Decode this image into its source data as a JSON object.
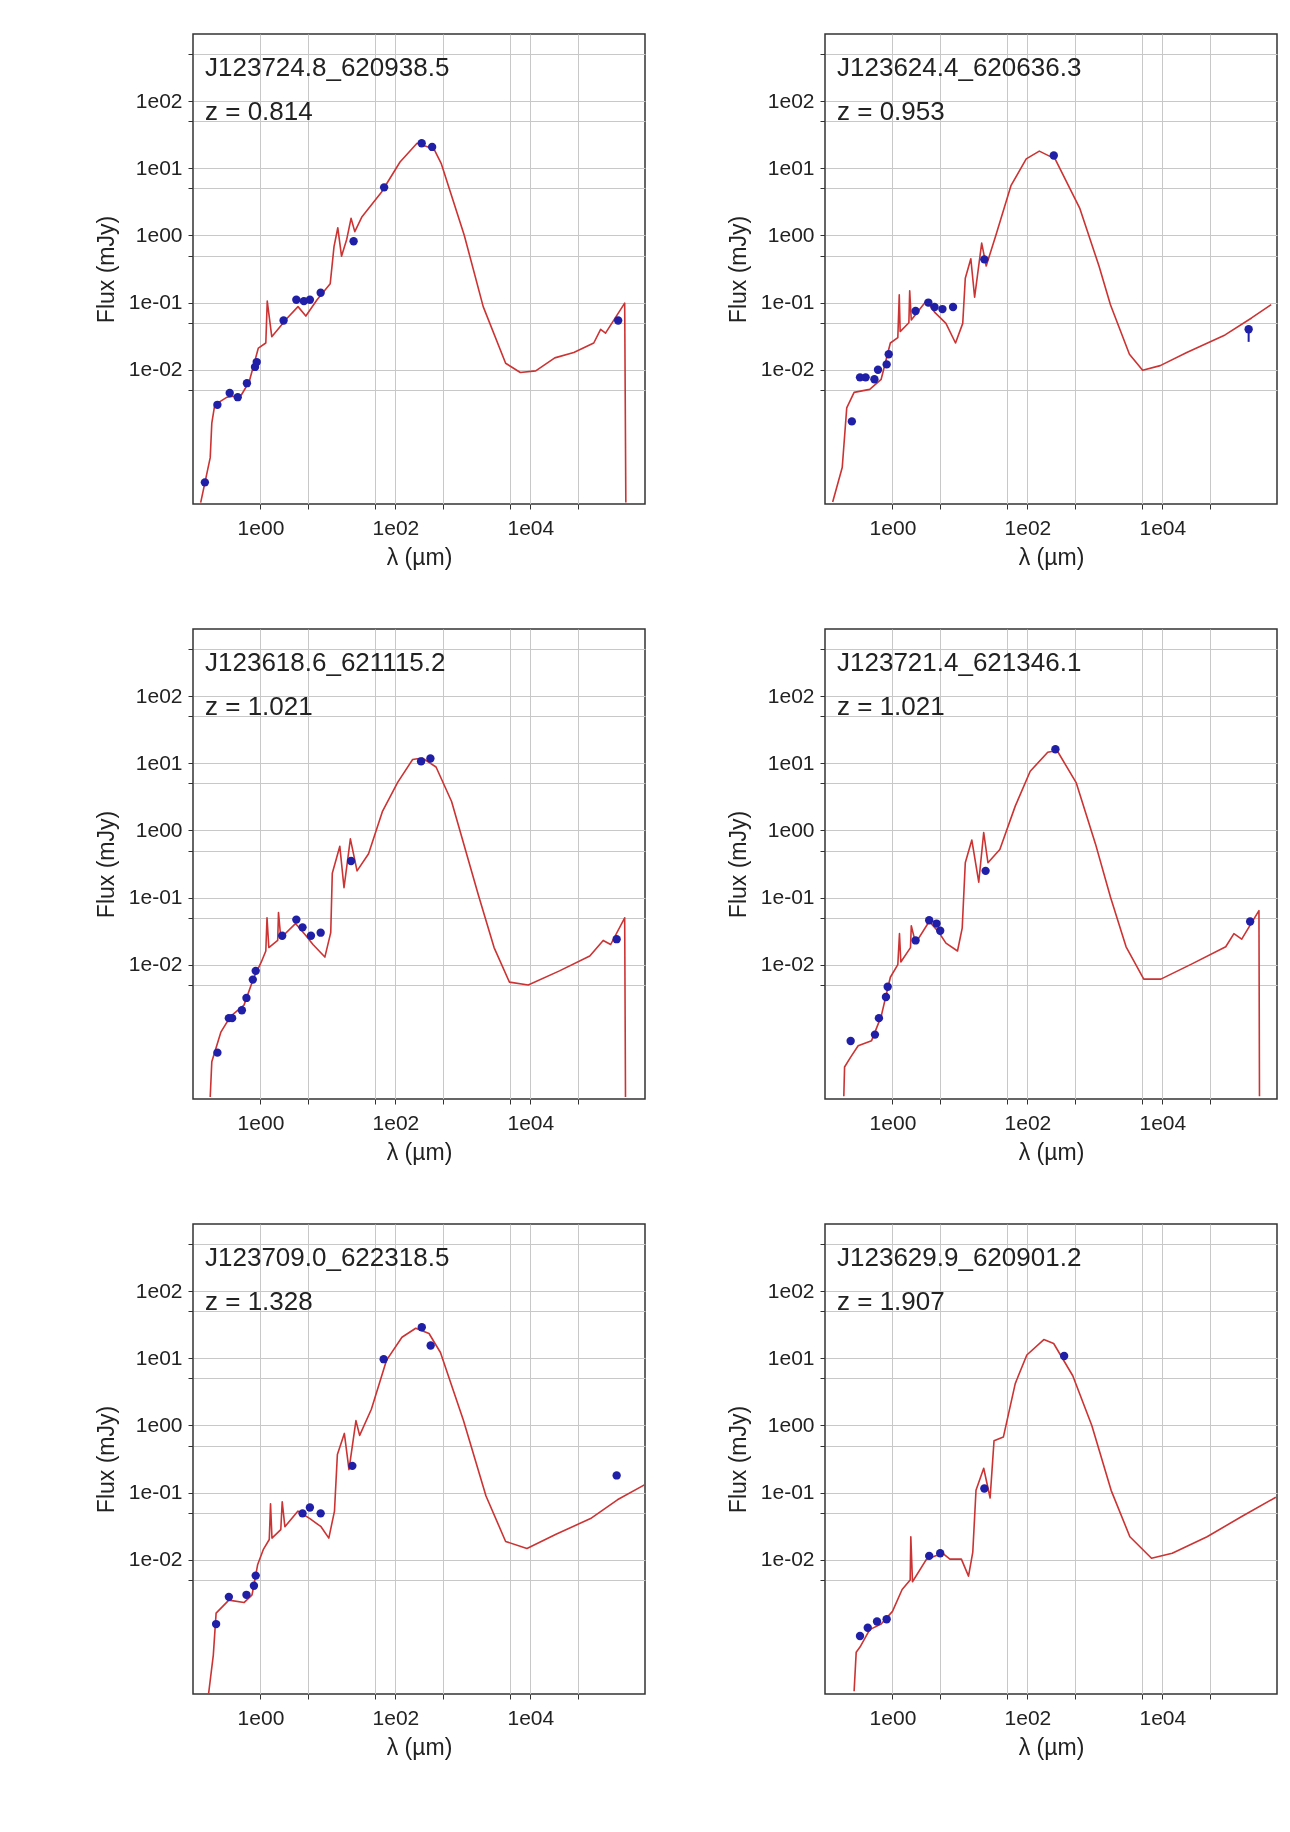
{
  "chart_data": [
    {
      "type": "line",
      "annotations": [
        "J123724.8_620938.5",
        "z = 0.814"
      ],
      "xlabel": "λ (µm)",
      "ylabel": "Flux (mJy)",
      "log": "xy",
      "grid": true,
      "xlim": [
        0.1,
        500000
      ],
      "ylim": [
        0.0001,
        1000
      ],
      "xticks": [
        {
          "value": 1,
          "label": "1e00"
        },
        {
          "value": 5,
          "label": null
        },
        {
          "value": 50,
          "label": null
        },
        {
          "value": 100,
          "label": "1e02"
        },
        {
          "value": 500,
          "label": null
        },
        {
          "value": 5000,
          "label": null
        },
        {
          "value": 10000,
          "label": "1e04"
        },
        {
          "value": 50000,
          "label": null
        }
      ],
      "yticks": [
        {
          "value": 500,
          "label": null
        },
        {
          "value": 100,
          "label": "1e02"
        },
        {
          "value": 50,
          "label": null
        },
        {
          "value": 10,
          "label": "1e01"
        },
        {
          "value": 5,
          "label": null
        },
        {
          "value": 1,
          "label": "1e00"
        },
        {
          "value": 0.5,
          "label": null
        },
        {
          "value": 0.1,
          "label": "1e-01"
        },
        {
          "value": 0.05,
          "label": null
        },
        {
          "value": 0.01,
          "label": "1e-02"
        },
        {
          "value": 0.005,
          "label": null
        }
      ],
      "series": [
        {
          "type": "line",
          "color": "#cc3333",
          "x": [
            0.13,
            0.18,
            0.19,
            0.21,
            0.32,
            0.52,
            0.68,
            0.93,
            1.2,
            1.26,
            1.47,
            2.5,
            3.6,
            4.7,
            6.9,
            10.8,
            12.3,
            14,
            15.9,
            19,
            22,
            25,
            32,
            62,
            117,
            209,
            372,
            480,
            1050,
            2000,
            4300,
            7100,
            12000,
            23000,
            44000,
            87000,
            110000,
            130000,
            250000,
            260000
          ],
          "values": [
            0.000105,
            0.00049,
            0.0016,
            0.003,
            0.0039,
            0.0042,
            0.0066,
            0.021,
            0.025,
            0.105,
            0.031,
            0.059,
            0.087,
            0.063,
            0.11,
            0.19,
            0.68,
            1.3,
            0.49,
            0.88,
            1.8,
            1.14,
            1.9,
            4.4,
            12.4,
            23.6,
            19.4,
            11.6,
            1.0,
            0.087,
            0.0125,
            0.0091,
            0.0096,
            0.015,
            0.018,
            0.025,
            0.04,
            0.035,
            0.098,
            0.000105
          ]
        },
        {
          "type": "scatter",
          "color": "#1f1fa8",
          "marker": "circle",
          "x": [
            0.15,
            0.23,
            0.35,
            0.46,
            0.63,
            0.83,
            0.88,
            2.2,
            3.4,
            4.4,
            5.4,
            7.8,
            24,
            68,
            245,
            350,
            200000
          ],
          "values": [
            0.00021,
            0.003,
            0.0045,
            0.0039,
            0.0063,
            0.011,
            0.013,
            0.054,
            0.11,
            0.105,
            0.11,
            0.14,
            0.82,
            5.2,
            23.6,
            20.8,
            0.054
          ]
        }
      ]
    },
    {
      "type": "line",
      "annotations": [
        "J123624.4_620636.3",
        "z = 0.953"
      ],
      "xlabel": "λ (µm)",
      "ylabel": "Flux (mJy)",
      "log": "xy",
      "grid": true,
      "xlim": [
        0.1,
        500000
      ],
      "ylim": [
        0.0001,
        1000
      ],
      "xticks": [
        {
          "value": 1,
          "label": "1e00"
        },
        {
          "value": 5,
          "label": null
        },
        {
          "value": 50,
          "label": null
        },
        {
          "value": 100,
          "label": "1e02"
        },
        {
          "value": 500,
          "label": null
        },
        {
          "value": 5000,
          "label": null
        },
        {
          "value": 10000,
          "label": "1e04"
        },
        {
          "value": 50000,
          "label": null
        }
      ],
      "yticks": [
        {
          "value": 500,
          "label": null
        },
        {
          "value": 100,
          "label": "1e02"
        },
        {
          "value": 50,
          "label": null
        },
        {
          "value": 10,
          "label": "1e01"
        },
        {
          "value": 5,
          "label": null
        },
        {
          "value": 1,
          "label": "1e00"
        },
        {
          "value": 0.5,
          "label": null
        },
        {
          "value": 0.1,
          "label": "1e-01"
        },
        {
          "value": 0.05,
          "label": null
        },
        {
          "value": 0.01,
          "label": "1e-02"
        },
        {
          "value": 0.005,
          "label": null
        }
      ],
      "series": [
        {
          "type": "line",
          "color": "#cc3333",
          "x": [
            0.13,
            0.18,
            0.21,
            0.27,
            0.46,
            0.68,
            0.93,
            1.2,
            1.26,
            1.3,
            1.75,
            1.8,
            1.9,
            3.2,
            4.2,
            6.2,
            8.6,
            11,
            12,
            14.5,
            16.5,
            21,
            24.5,
            34,
            57,
            96,
            150,
            257,
            600,
            1150,
            1700,
            3250,
            5100,
            9300,
            23000,
            85000,
            210000,
            410000
          ],
          "values": [
            0.000107,
            0.00035,
            0.0027,
            0.0046,
            0.0051,
            0.0072,
            0.025,
            0.03,
            0.13,
            0.037,
            0.05,
            0.15,
            0.055,
            0.107,
            0.072,
            0.049,
            0.025,
            0.049,
            0.23,
            0.45,
            0.12,
            0.77,
            0.35,
            1.0,
            5.5,
            13.8,
            18,
            13.8,
            2.5,
            0.35,
            0.093,
            0.017,
            0.0098,
            0.0115,
            0.018,
            0.033,
            0.059,
            0.093
          ]
        },
        {
          "type": "scatter",
          "color": "#1f1fa8",
          "marker": "circle",
          "x": [
            0.25,
            0.33,
            0.4,
            0.54,
            0.61,
            0.82,
            0.88,
            2.2,
            3.4,
            4.2,
            5.5,
            7.9,
            23,
            246,
            190000
          ],
          "values": [
            0.0017,
            0.0077,
            0.0077,
            0.0072,
            0.01,
            0.012,
            0.017,
            0.075,
            0.1,
            0.086,
            0.08,
            0.086,
            0.44,
            15.5,
            0.04
          ],
          "errors": [
            null,
            null,
            null,
            null,
            null,
            null,
            null,
            null,
            null,
            null,
            null,
            null,
            null,
            null,
            [
              0.026,
              0.045
            ]
          ]
        }
      ]
    },
    {
      "type": "line",
      "annotations": [
        "J123618.6_621115.2",
        "z = 1.021"
      ],
      "xlabel": "λ (µm)",
      "ylabel": "Flux (mJy)",
      "log": "xy",
      "grid": true,
      "xlim": [
        0.1,
        500000
      ],
      "ylim": [
        0.0001,
        1000
      ],
      "xticks": [
        {
          "value": 1,
          "label": "1e00"
        },
        {
          "value": 5,
          "label": null
        },
        {
          "value": 50,
          "label": null
        },
        {
          "value": 100,
          "label": "1e02"
        },
        {
          "value": 500,
          "label": null
        },
        {
          "value": 5000,
          "label": null
        },
        {
          "value": 10000,
          "label": "1e04"
        },
        {
          "value": 50000,
          "label": null
        }
      ],
      "yticks": [
        {
          "value": 500,
          "label": null
        },
        {
          "value": 100,
          "label": "1e02"
        },
        {
          "value": 50,
          "label": null
        },
        {
          "value": 10,
          "label": "1e01"
        },
        {
          "value": 5,
          "label": null
        },
        {
          "value": 1,
          "label": "1e00"
        },
        {
          "value": 0.5,
          "label": null
        },
        {
          "value": 0.1,
          "label": "1e-01"
        },
        {
          "value": 0.05,
          "label": null
        },
        {
          "value": 0.01,
          "label": "1e-02"
        },
        {
          "value": 0.005,
          "label": null
        }
      ],
      "series": [
        {
          "type": "line",
          "color": "#cc3333",
          "x": [
            0.18,
            0.19,
            0.26,
            0.36,
            0.57,
            0.79,
            1.03,
            1.2,
            1.25,
            1.33,
            1.8,
            1.85,
            2.0,
            3.3,
            4.6,
            6.0,
            9.0,
            11,
            11.6,
            15,
            17.3,
            21.5,
            27,
            40,
            64,
            108,
            180,
            250,
            400,
            680,
            1700,
            2900,
            4900,
            9300,
            27000,
            76000,
            120000,
            155000,
            250000,
            257000
          ],
          "values": [
            0.000107,
            0.00036,
            0.001,
            0.0017,
            0.0025,
            0.0063,
            0.011,
            0.016,
            0.05,
            0.018,
            0.023,
            0.06,
            0.025,
            0.041,
            0.028,
            0.02,
            0.013,
            0.03,
            0.23,
            0.58,
            0.14,
            0.75,
            0.25,
            0.45,
            1.9,
            5.2,
            11.4,
            12,
            8.8,
            2.7,
            0.108,
            0.018,
            0.0055,
            0.005,
            0.0081,
            0.0135,
            0.023,
            0.02,
            0.05,
            0.000107
          ]
        },
        {
          "type": "scatter",
          "color": "#1f1fa8",
          "marker": "circle",
          "x": [
            0.23,
            0.34,
            0.38,
            0.53,
            0.62,
            0.77,
            0.85,
            2.1,
            3.4,
            4.2,
            5.6,
            7.8,
            22,
            240,
            330,
            190000
          ],
          "values": [
            0.00049,
            0.0016,
            0.0016,
            0.0021,
            0.0032,
            0.006,
            0.0081,
            0.027,
            0.047,
            0.036,
            0.027,
            0.03,
            0.35,
            10.7,
            11.8,
            0.024
          ]
        }
      ]
    },
    {
      "type": "line",
      "annotations": [
        "J123721.4_621346.1",
        "z = 1.021"
      ],
      "xlabel": "λ (µm)",
      "ylabel": "Flux (mJy)",
      "log": "xy",
      "grid": true,
      "xlim": [
        0.1,
        500000
      ],
      "ylim": [
        0.0001,
        1000
      ],
      "xticks": [
        {
          "value": 1,
          "label": "1e00"
        },
        {
          "value": 5,
          "label": null
        },
        {
          "value": 50,
          "label": null
        },
        {
          "value": 100,
          "label": "1e02"
        },
        {
          "value": 500,
          "label": null
        },
        {
          "value": 5000,
          "label": null
        },
        {
          "value": 10000,
          "label": "1e04"
        },
        {
          "value": 50000,
          "label": null
        }
      ],
      "yticks": [
        {
          "value": 500,
          "label": null
        },
        {
          "value": 100,
          "label": "1e02"
        },
        {
          "value": 50,
          "label": null
        },
        {
          "value": 10,
          "label": "1e01"
        },
        {
          "value": 5,
          "label": null
        },
        {
          "value": 1,
          "label": "1e00"
        },
        {
          "value": 0.5,
          "label": null
        },
        {
          "value": 0.1,
          "label": "1e-01"
        },
        {
          "value": 0.05,
          "label": null
        },
        {
          "value": 0.01,
          "label": "1e-02"
        },
        {
          "value": 0.005,
          "label": null
        }
      ],
      "series": [
        {
          "type": "line",
          "color": "#cc3333",
          "x": [
            0.19,
            0.195,
            0.24,
            0.31,
            0.49,
            0.68,
            0.93,
            1.2,
            1.27,
            1.33,
            1.85,
            1.9,
            2.2,
            3.5,
            4.8,
            6.2,
            9.2,
            10.8,
            12,
            15,
            19,
            22.5,
            26,
            39,
            66,
            110,
            200,
            275,
            530,
            1020,
            1700,
            2900,
            5300,
            9500,
            27000,
            87000,
            115000,
            150000,
            270000,
            275000
          ],
          "values": [
            0.00011,
            0.0003,
            0.00042,
            0.00062,
            0.00074,
            0.0017,
            0.0065,
            0.01,
            0.029,
            0.011,
            0.018,
            0.038,
            0.021,
            0.044,
            0.031,
            0.021,
            0.016,
            0.035,
            0.33,
            0.72,
            0.17,
            0.93,
            0.33,
            0.52,
            2.3,
            7.6,
            14.6,
            15.5,
            5.1,
            0.63,
            0.102,
            0.0185,
            0.0061,
            0.0061,
            0.0102,
            0.0185,
            0.029,
            0.024,
            0.064,
            0.00011
          ]
        },
        {
          "type": "scatter",
          "color": "#1f1fa8",
          "marker": "circle",
          "x": [
            0.24,
            0.55,
            0.63,
            0.8,
            0.85,
            2.2,
            3.5,
            4.5,
            5.1,
            24,
            260,
            200000
          ],
          "values": [
            0.00073,
            0.00091,
            0.0016,
            0.0033,
            0.0047,
            0.023,
            0.046,
            0.041,
            0.032,
            0.25,
            16.2,
            0.044
          ]
        }
      ]
    },
    {
      "type": "line",
      "annotations": [
        "J123709.0_622318.5",
        "z = 1.328"
      ],
      "xlabel": "λ (µm)",
      "ylabel": "Flux (mJy)",
      "log": "xy",
      "grid": true,
      "xlim": [
        0.1,
        500000
      ],
      "ylim": [
        0.0001,
        1000
      ],
      "xticks": [
        {
          "value": 1,
          "label": "1e00"
        },
        {
          "value": 5,
          "label": null
        },
        {
          "value": 50,
          "label": null
        },
        {
          "value": 100,
          "label": "1e02"
        },
        {
          "value": 500,
          "label": null
        },
        {
          "value": 5000,
          "label": null
        },
        {
          "value": 10000,
          "label": "1e04"
        },
        {
          "value": 50000,
          "label": null
        }
      ],
      "yticks": [
        {
          "value": 500,
          "label": null
        },
        {
          "value": 100,
          "label": "1e02"
        },
        {
          "value": 50,
          "label": null
        },
        {
          "value": 10,
          "label": "1e01"
        },
        {
          "value": 5,
          "label": null
        },
        {
          "value": 1,
          "label": "1e00"
        },
        {
          "value": 0.5,
          "label": null
        },
        {
          "value": 0.1,
          "label": "1e-01"
        },
        {
          "value": 0.05,
          "label": null
        },
        {
          "value": 0.01,
          "label": "1e-02"
        },
        {
          "value": 0.005,
          "label": null
        }
      ],
      "series": [
        {
          "type": "line",
          "color": "#cc3333",
          "x": [
            0.17,
            0.2,
            0.22,
            0.34,
            0.57,
            0.75,
            0.91,
            1.11,
            1.35,
            1.41,
            1.48,
            2.0,
            2.1,
            2.3,
            3.6,
            5.4,
            7.9,
            10.3,
            12.5,
            13.8,
            17.5,
            20.5,
            26,
            29.5,
            44,
            74,
            125,
            200,
            315,
            465,
            1020,
            2200,
            4300,
            8900,
            24000,
            78000,
            195000,
            490000
          ],
          "values": [
            0.0001,
            0.00038,
            0.0016,
            0.0025,
            0.0023,
            0.003,
            0.0085,
            0.0144,
            0.02,
            0.068,
            0.021,
            0.028,
            0.073,
            0.031,
            0.053,
            0.041,
            0.031,
            0.021,
            0.053,
            0.37,
            0.76,
            0.22,
            1.18,
            0.71,
            1.74,
            9.4,
            20.6,
            28,
            23.4,
            12.2,
            1.18,
            0.089,
            0.0187,
            0.0147,
            0.024,
            0.041,
            0.078,
            0.13
          ]
        },
        {
          "type": "scatter",
          "color": "#1f1fa8",
          "marker": "circle",
          "x": [
            0.22,
            0.34,
            0.62,
            0.8,
            0.85,
            4.2,
            5.4,
            7.8,
            23,
            67,
            246,
            333,
            190000
          ],
          "values": [
            0.0011,
            0.0028,
            0.003,
            0.0041,
            0.0058,
            0.049,
            0.06,
            0.049,
            0.25,
            9.7,
            29,
            15.5,
            0.18
          ]
        }
      ]
    },
    {
      "type": "line",
      "annotations": [
        "J123629.9_620901.2",
        "z = 1.907"
      ],
      "xlabel": "λ (µm)",
      "ylabel": "Flux (mJy)",
      "log": "xy",
      "grid": true,
      "xlim": [
        0.1,
        500000
      ],
      "ylim": [
        0.0001,
        1000
      ],
      "xticks": [
        {
          "value": 1,
          "label": "1e00"
        },
        {
          "value": 5,
          "label": null
        },
        {
          "value": 50,
          "label": null
        },
        {
          "value": 100,
          "label": "1e02"
        },
        {
          "value": 500,
          "label": null
        },
        {
          "value": 5000,
          "label": null
        },
        {
          "value": 10000,
          "label": "1e04"
        },
        {
          "value": 50000,
          "label": null
        }
      ],
      "yticks": [
        {
          "value": 500,
          "label": null
        },
        {
          "value": 100,
          "label": "1e02"
        },
        {
          "value": 50,
          "label": null
        },
        {
          "value": 10,
          "label": "1e01"
        },
        {
          "value": 5,
          "label": null
        },
        {
          "value": 1,
          "label": "1e00"
        },
        {
          "value": 0.5,
          "label": null
        },
        {
          "value": 0.1,
          "label": "1e-01"
        },
        {
          "value": 0.05,
          "label": null
        },
        {
          "value": 0.01,
          "label": "1e-02"
        },
        {
          "value": 0.005,
          "label": null
        }
      ],
      "series": [
        {
          "type": "line",
          "color": "#cc3333",
          "x": [
            0.27,
            0.29,
            0.33,
            0.46,
            0.68,
            1.0,
            1.39,
            1.83,
            1.87,
            1.98,
            3.2,
            5.5,
            7.1,
            10.5,
            13.4,
            15.5,
            17.3,
            22.5,
            28,
            32,
            44,
            66,
            98,
            175,
            245,
            470,
            900,
            1740,
            3300,
            6900,
            14000,
            46000,
            150000,
            480000
          ],
          "values": [
            0.00011,
            0.00042,
            0.0005,
            0.00091,
            0.0011,
            0.0017,
            0.0036,
            0.005,
            0.022,
            0.0047,
            0.0102,
            0.0125,
            0.0102,
            0.0102,
            0.0057,
            0.013,
            0.108,
            0.23,
            0.083,
            0.59,
            0.67,
            4.2,
            11.2,
            19,
            16.6,
            5.5,
            1.0,
            0.108,
            0.022,
            0.0105,
            0.0125,
            0.022,
            0.044,
            0.085
          ]
        },
        {
          "type": "scatter",
          "color": "#1f1fa8",
          "marker": "circle",
          "x": [
            0.33,
            0.43,
            0.59,
            0.82,
            3.5,
            5.1,
            23,
            350
          ],
          "values": [
            0.00073,
            0.00097,
            0.0012,
            0.0013,
            0.0114,
            0.0125,
            0.115,
            10.8
          ]
        }
      ]
    }
  ]
}
